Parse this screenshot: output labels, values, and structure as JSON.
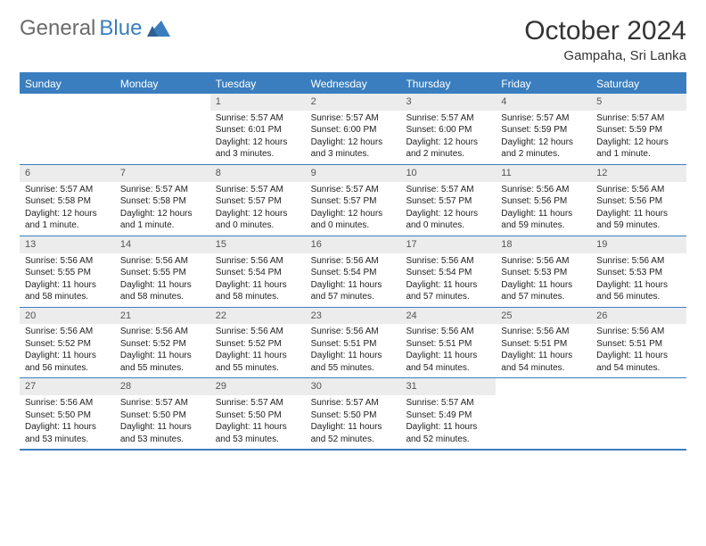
{
  "logo": {
    "text1": "General",
    "text2": "Blue"
  },
  "title": "October 2024",
  "location": "Gampaha, Sri Lanka",
  "colors": {
    "accent": "#3a7ebf",
    "header_gray": "#ececec",
    "logo_gray": "#6b6b6b"
  },
  "dayNames": [
    "Sunday",
    "Monday",
    "Tuesday",
    "Wednesday",
    "Thursday",
    "Friday",
    "Saturday"
  ],
  "weeks": [
    [
      null,
      null,
      {
        "n": "1",
        "sr": "5:57 AM",
        "ss": "6:01 PM",
        "dl": "12 hours and 3 minutes."
      },
      {
        "n": "2",
        "sr": "5:57 AM",
        "ss": "6:00 PM",
        "dl": "12 hours and 3 minutes."
      },
      {
        "n": "3",
        "sr": "5:57 AM",
        "ss": "6:00 PM",
        "dl": "12 hours and 2 minutes."
      },
      {
        "n": "4",
        "sr": "5:57 AM",
        "ss": "5:59 PM",
        "dl": "12 hours and 2 minutes."
      },
      {
        "n": "5",
        "sr": "5:57 AM",
        "ss": "5:59 PM",
        "dl": "12 hours and 1 minute."
      }
    ],
    [
      {
        "n": "6",
        "sr": "5:57 AM",
        "ss": "5:58 PM",
        "dl": "12 hours and 1 minute."
      },
      {
        "n": "7",
        "sr": "5:57 AM",
        "ss": "5:58 PM",
        "dl": "12 hours and 1 minute."
      },
      {
        "n": "8",
        "sr": "5:57 AM",
        "ss": "5:57 PM",
        "dl": "12 hours and 0 minutes."
      },
      {
        "n": "9",
        "sr": "5:57 AM",
        "ss": "5:57 PM",
        "dl": "12 hours and 0 minutes."
      },
      {
        "n": "10",
        "sr": "5:57 AM",
        "ss": "5:57 PM",
        "dl": "12 hours and 0 minutes."
      },
      {
        "n": "11",
        "sr": "5:56 AM",
        "ss": "5:56 PM",
        "dl": "11 hours and 59 minutes."
      },
      {
        "n": "12",
        "sr": "5:56 AM",
        "ss": "5:56 PM",
        "dl": "11 hours and 59 minutes."
      }
    ],
    [
      {
        "n": "13",
        "sr": "5:56 AM",
        "ss": "5:55 PM",
        "dl": "11 hours and 58 minutes."
      },
      {
        "n": "14",
        "sr": "5:56 AM",
        "ss": "5:55 PM",
        "dl": "11 hours and 58 minutes."
      },
      {
        "n": "15",
        "sr": "5:56 AM",
        "ss": "5:54 PM",
        "dl": "11 hours and 58 minutes."
      },
      {
        "n": "16",
        "sr": "5:56 AM",
        "ss": "5:54 PM",
        "dl": "11 hours and 57 minutes."
      },
      {
        "n": "17",
        "sr": "5:56 AM",
        "ss": "5:54 PM",
        "dl": "11 hours and 57 minutes."
      },
      {
        "n": "18",
        "sr": "5:56 AM",
        "ss": "5:53 PM",
        "dl": "11 hours and 57 minutes."
      },
      {
        "n": "19",
        "sr": "5:56 AM",
        "ss": "5:53 PM",
        "dl": "11 hours and 56 minutes."
      }
    ],
    [
      {
        "n": "20",
        "sr": "5:56 AM",
        "ss": "5:52 PM",
        "dl": "11 hours and 56 minutes."
      },
      {
        "n": "21",
        "sr": "5:56 AM",
        "ss": "5:52 PM",
        "dl": "11 hours and 55 minutes."
      },
      {
        "n": "22",
        "sr": "5:56 AM",
        "ss": "5:52 PM",
        "dl": "11 hours and 55 minutes."
      },
      {
        "n": "23",
        "sr": "5:56 AM",
        "ss": "5:51 PM",
        "dl": "11 hours and 55 minutes."
      },
      {
        "n": "24",
        "sr": "5:56 AM",
        "ss": "5:51 PM",
        "dl": "11 hours and 54 minutes."
      },
      {
        "n": "25",
        "sr": "5:56 AM",
        "ss": "5:51 PM",
        "dl": "11 hours and 54 minutes."
      },
      {
        "n": "26",
        "sr": "5:56 AM",
        "ss": "5:51 PM",
        "dl": "11 hours and 54 minutes."
      }
    ],
    [
      {
        "n": "27",
        "sr": "5:56 AM",
        "ss": "5:50 PM",
        "dl": "11 hours and 53 minutes."
      },
      {
        "n": "28",
        "sr": "5:57 AM",
        "ss": "5:50 PM",
        "dl": "11 hours and 53 minutes."
      },
      {
        "n": "29",
        "sr": "5:57 AM",
        "ss": "5:50 PM",
        "dl": "11 hours and 53 minutes."
      },
      {
        "n": "30",
        "sr": "5:57 AM",
        "ss": "5:50 PM",
        "dl": "11 hours and 52 minutes."
      },
      {
        "n": "31",
        "sr": "5:57 AM",
        "ss": "5:49 PM",
        "dl": "11 hours and 52 minutes."
      },
      null,
      null
    ]
  ],
  "labels": {
    "sunrise": "Sunrise:",
    "sunset": "Sunset:",
    "daylight": "Daylight:"
  }
}
